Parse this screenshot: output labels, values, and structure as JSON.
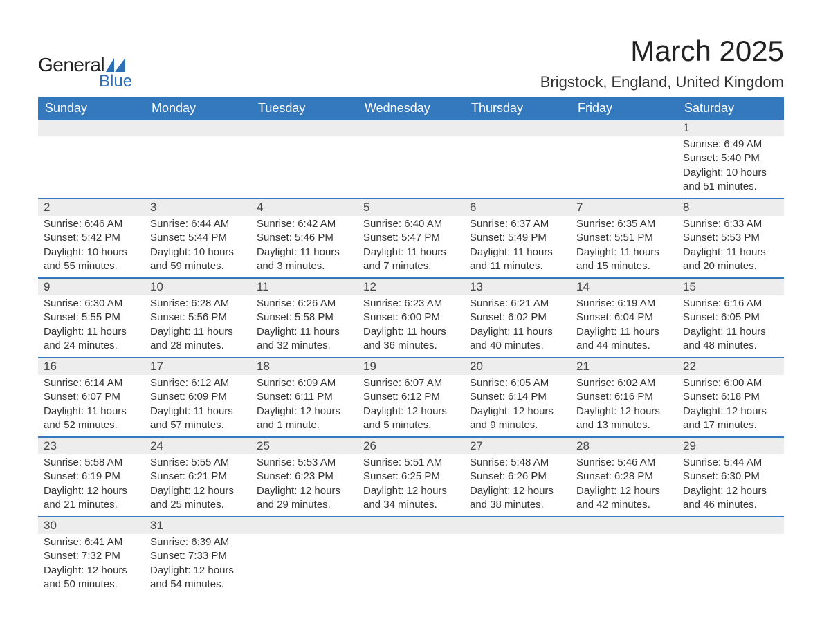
{
  "brand": {
    "text_general": "General",
    "text_blue": "Blue",
    "shape_color": "#2d6fb5"
  },
  "title": "March 2025",
  "location": "Brigstock, England, United Kingdom",
  "colors": {
    "header_bg": "#3478bd",
    "header_text": "#ffffff",
    "daynum_bg": "#ededed",
    "row_divider": "#3478bd",
    "body_text": "#333333"
  },
  "fonts": {
    "title_size_pt": 32,
    "location_size_pt": 17,
    "weekday_size_pt": 14,
    "daynum_size_pt": 13,
    "body_size_pt": 11
  },
  "weekdays": [
    "Sunday",
    "Monday",
    "Tuesday",
    "Wednesday",
    "Thursday",
    "Friday",
    "Saturday"
  ],
  "weeks": [
    [
      {
        "day": "",
        "sunrise": "",
        "sunset": "",
        "daylight": ""
      },
      {
        "day": "",
        "sunrise": "",
        "sunset": "",
        "daylight": ""
      },
      {
        "day": "",
        "sunrise": "",
        "sunset": "",
        "daylight": ""
      },
      {
        "day": "",
        "sunrise": "",
        "sunset": "",
        "daylight": ""
      },
      {
        "day": "",
        "sunrise": "",
        "sunset": "",
        "daylight": ""
      },
      {
        "day": "",
        "sunrise": "",
        "sunset": "",
        "daylight": ""
      },
      {
        "day": "1",
        "sunrise": "Sunrise: 6:49 AM",
        "sunset": "Sunset: 5:40 PM",
        "daylight": "Daylight: 10 hours and 51 minutes."
      }
    ],
    [
      {
        "day": "2",
        "sunrise": "Sunrise: 6:46 AM",
        "sunset": "Sunset: 5:42 PM",
        "daylight": "Daylight: 10 hours and 55 minutes."
      },
      {
        "day": "3",
        "sunrise": "Sunrise: 6:44 AM",
        "sunset": "Sunset: 5:44 PM",
        "daylight": "Daylight: 10 hours and 59 minutes."
      },
      {
        "day": "4",
        "sunrise": "Sunrise: 6:42 AM",
        "sunset": "Sunset: 5:46 PM",
        "daylight": "Daylight: 11 hours and 3 minutes."
      },
      {
        "day": "5",
        "sunrise": "Sunrise: 6:40 AM",
        "sunset": "Sunset: 5:47 PM",
        "daylight": "Daylight: 11 hours and 7 minutes."
      },
      {
        "day": "6",
        "sunrise": "Sunrise: 6:37 AM",
        "sunset": "Sunset: 5:49 PM",
        "daylight": "Daylight: 11 hours and 11 minutes."
      },
      {
        "day": "7",
        "sunrise": "Sunrise: 6:35 AM",
        "sunset": "Sunset: 5:51 PM",
        "daylight": "Daylight: 11 hours and 15 minutes."
      },
      {
        "day": "8",
        "sunrise": "Sunrise: 6:33 AM",
        "sunset": "Sunset: 5:53 PM",
        "daylight": "Daylight: 11 hours and 20 minutes."
      }
    ],
    [
      {
        "day": "9",
        "sunrise": "Sunrise: 6:30 AM",
        "sunset": "Sunset: 5:55 PM",
        "daylight": "Daylight: 11 hours and 24 minutes."
      },
      {
        "day": "10",
        "sunrise": "Sunrise: 6:28 AM",
        "sunset": "Sunset: 5:56 PM",
        "daylight": "Daylight: 11 hours and 28 minutes."
      },
      {
        "day": "11",
        "sunrise": "Sunrise: 6:26 AM",
        "sunset": "Sunset: 5:58 PM",
        "daylight": "Daylight: 11 hours and 32 minutes."
      },
      {
        "day": "12",
        "sunrise": "Sunrise: 6:23 AM",
        "sunset": "Sunset: 6:00 PM",
        "daylight": "Daylight: 11 hours and 36 minutes."
      },
      {
        "day": "13",
        "sunrise": "Sunrise: 6:21 AM",
        "sunset": "Sunset: 6:02 PM",
        "daylight": "Daylight: 11 hours and 40 minutes."
      },
      {
        "day": "14",
        "sunrise": "Sunrise: 6:19 AM",
        "sunset": "Sunset: 6:04 PM",
        "daylight": "Daylight: 11 hours and 44 minutes."
      },
      {
        "day": "15",
        "sunrise": "Sunrise: 6:16 AM",
        "sunset": "Sunset: 6:05 PM",
        "daylight": "Daylight: 11 hours and 48 minutes."
      }
    ],
    [
      {
        "day": "16",
        "sunrise": "Sunrise: 6:14 AM",
        "sunset": "Sunset: 6:07 PM",
        "daylight": "Daylight: 11 hours and 52 minutes."
      },
      {
        "day": "17",
        "sunrise": "Sunrise: 6:12 AM",
        "sunset": "Sunset: 6:09 PM",
        "daylight": "Daylight: 11 hours and 57 minutes."
      },
      {
        "day": "18",
        "sunrise": "Sunrise: 6:09 AM",
        "sunset": "Sunset: 6:11 PM",
        "daylight": "Daylight: 12 hours and 1 minute."
      },
      {
        "day": "19",
        "sunrise": "Sunrise: 6:07 AM",
        "sunset": "Sunset: 6:12 PM",
        "daylight": "Daylight: 12 hours and 5 minutes."
      },
      {
        "day": "20",
        "sunrise": "Sunrise: 6:05 AM",
        "sunset": "Sunset: 6:14 PM",
        "daylight": "Daylight: 12 hours and 9 minutes."
      },
      {
        "day": "21",
        "sunrise": "Sunrise: 6:02 AM",
        "sunset": "Sunset: 6:16 PM",
        "daylight": "Daylight: 12 hours and 13 minutes."
      },
      {
        "day": "22",
        "sunrise": "Sunrise: 6:00 AM",
        "sunset": "Sunset: 6:18 PM",
        "daylight": "Daylight: 12 hours and 17 minutes."
      }
    ],
    [
      {
        "day": "23",
        "sunrise": "Sunrise: 5:58 AM",
        "sunset": "Sunset: 6:19 PM",
        "daylight": "Daylight: 12 hours and 21 minutes."
      },
      {
        "day": "24",
        "sunrise": "Sunrise: 5:55 AM",
        "sunset": "Sunset: 6:21 PM",
        "daylight": "Daylight: 12 hours and 25 minutes."
      },
      {
        "day": "25",
        "sunrise": "Sunrise: 5:53 AM",
        "sunset": "Sunset: 6:23 PM",
        "daylight": "Daylight: 12 hours and 29 minutes."
      },
      {
        "day": "26",
        "sunrise": "Sunrise: 5:51 AM",
        "sunset": "Sunset: 6:25 PM",
        "daylight": "Daylight: 12 hours and 34 minutes."
      },
      {
        "day": "27",
        "sunrise": "Sunrise: 5:48 AM",
        "sunset": "Sunset: 6:26 PM",
        "daylight": "Daylight: 12 hours and 38 minutes."
      },
      {
        "day": "28",
        "sunrise": "Sunrise: 5:46 AM",
        "sunset": "Sunset: 6:28 PM",
        "daylight": "Daylight: 12 hours and 42 minutes."
      },
      {
        "day": "29",
        "sunrise": "Sunrise: 5:44 AM",
        "sunset": "Sunset: 6:30 PM",
        "daylight": "Daylight: 12 hours and 46 minutes."
      }
    ],
    [
      {
        "day": "30",
        "sunrise": "Sunrise: 6:41 AM",
        "sunset": "Sunset: 7:32 PM",
        "daylight": "Daylight: 12 hours and 50 minutes."
      },
      {
        "day": "31",
        "sunrise": "Sunrise: 6:39 AM",
        "sunset": "Sunset: 7:33 PM",
        "daylight": "Daylight: 12 hours and 54 minutes."
      },
      {
        "day": "",
        "sunrise": "",
        "sunset": "",
        "daylight": ""
      },
      {
        "day": "",
        "sunrise": "",
        "sunset": "",
        "daylight": ""
      },
      {
        "day": "",
        "sunrise": "",
        "sunset": "",
        "daylight": ""
      },
      {
        "day": "",
        "sunrise": "",
        "sunset": "",
        "daylight": ""
      },
      {
        "day": "",
        "sunrise": "",
        "sunset": "",
        "daylight": ""
      }
    ]
  ]
}
